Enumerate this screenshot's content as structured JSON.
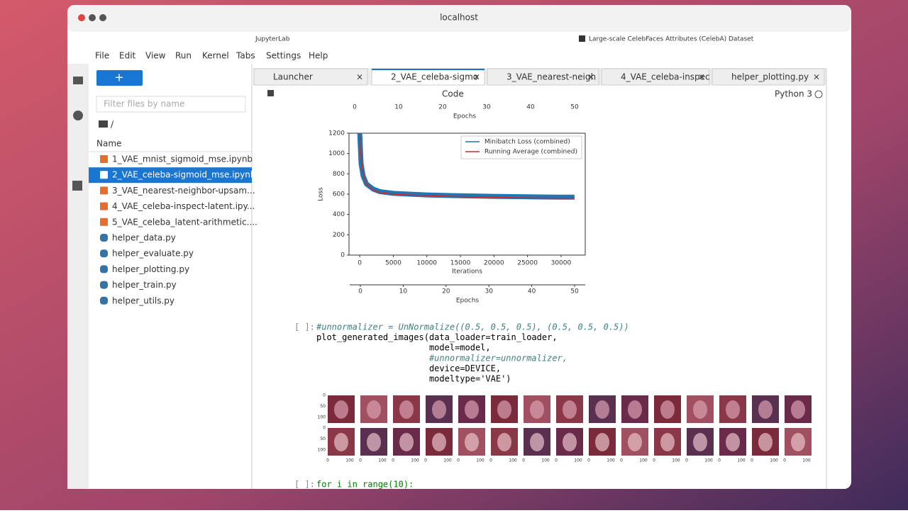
{
  "browser": {
    "url": "localhost",
    "tabs": [
      "JupyterLab",
      "Large-scale CelebFaces Attributes (CelebA) Dataset"
    ]
  },
  "menu": [
    "File",
    "Edit",
    "View",
    "Run",
    "Kernel",
    "Tabs",
    "Settings",
    "Help"
  ],
  "file_browser": {
    "filter_placeholder": "Filter files by name",
    "path": "/",
    "column": "Name",
    "selected": 1,
    "files": [
      "1_VAE_mnist_sigmoid_mse.ipynb",
      "2_VAE_celeba-sigmoid_mse.ipynb",
      "3_VAE_nearest-neighbor-upsam...",
      "4_VAE_celeba-inspect-latent.ipy...",
      "5_VAE_celeba_latent-arithmetic....",
      "helper_data.py",
      "helper_evaluate.py",
      "helper_plotting.py",
      "helper_train.py",
      "helper_utils.py"
    ]
  },
  "tabs": [
    "Launcher",
    "2_VAE_celeba-sigmo",
    "3_VAE_nearest-neigh",
    "4_VAE_celeba-inspec",
    "helper_plotting.py"
  ],
  "active_tab": 1,
  "toolbar": {
    "cell_type": "Code",
    "kernel": "Python 3"
  },
  "epoch_axis_top": {
    "ticks": [
      0,
      10,
      20,
      30,
      40,
      50
    ],
    "label": "Epochs"
  },
  "chart_data": {
    "type": "line",
    "xlabel": "Iterations",
    "ylabel": "Loss",
    "x": [
      0,
      200,
      500,
      1000,
      2000,
      3000,
      5000,
      8000,
      10000,
      15000,
      20000,
      25000,
      30000,
      32000
    ],
    "series": [
      {
        "name": "Minibatch Loss (combined)",
        "color": "#1f77b4",
        "values": [
          1200,
          900,
          780,
          700,
          650,
          625,
          608,
          598,
          592,
          584,
          578,
          574,
          570,
          570
        ]
      },
      {
        "name": "Running Average (combined)",
        "color": "#d62728",
        "values": [
          1200,
          950,
          800,
          700,
          640,
          615,
          600,
          590,
          585,
          575,
          568,
          563,
          560,
          560
        ]
      }
    ],
    "xlim": [
      -1600,
      33600
    ],
    "ylim": [
      0,
      1200
    ],
    "xticks": [
      0,
      5000,
      10000,
      15000,
      20000,
      25000,
      30000
    ],
    "yticks": [
      0,
      200,
      400,
      600,
      800,
      1000,
      1200
    ],
    "legend": "upper right"
  },
  "epoch_axis_bottom": {
    "ticks": [
      0,
      10,
      20,
      30,
      40,
      50
    ],
    "label": "Epochs"
  },
  "code_cell": {
    "prompt": "[ ]:",
    "lines": [
      "#unnormalizer = UnNormalize((0.5, 0.5, 0.5), (0.5, 0.5, 0.5))",
      "plot_generated_images(data_loader=train_loader,",
      "                      model=model,",
      "                      #unnormalizer=unnormalizer,",
      "                      device=DEVICE,",
      "                      modeltype='VAE')"
    ]
  },
  "image_grid": {
    "yticks": [
      0,
      50,
      100
    ],
    "xticks": [
      0,
      100
    ]
  },
  "next_cell": {
    "prompt": "[ ]:",
    "line": "for i in range(10):"
  }
}
